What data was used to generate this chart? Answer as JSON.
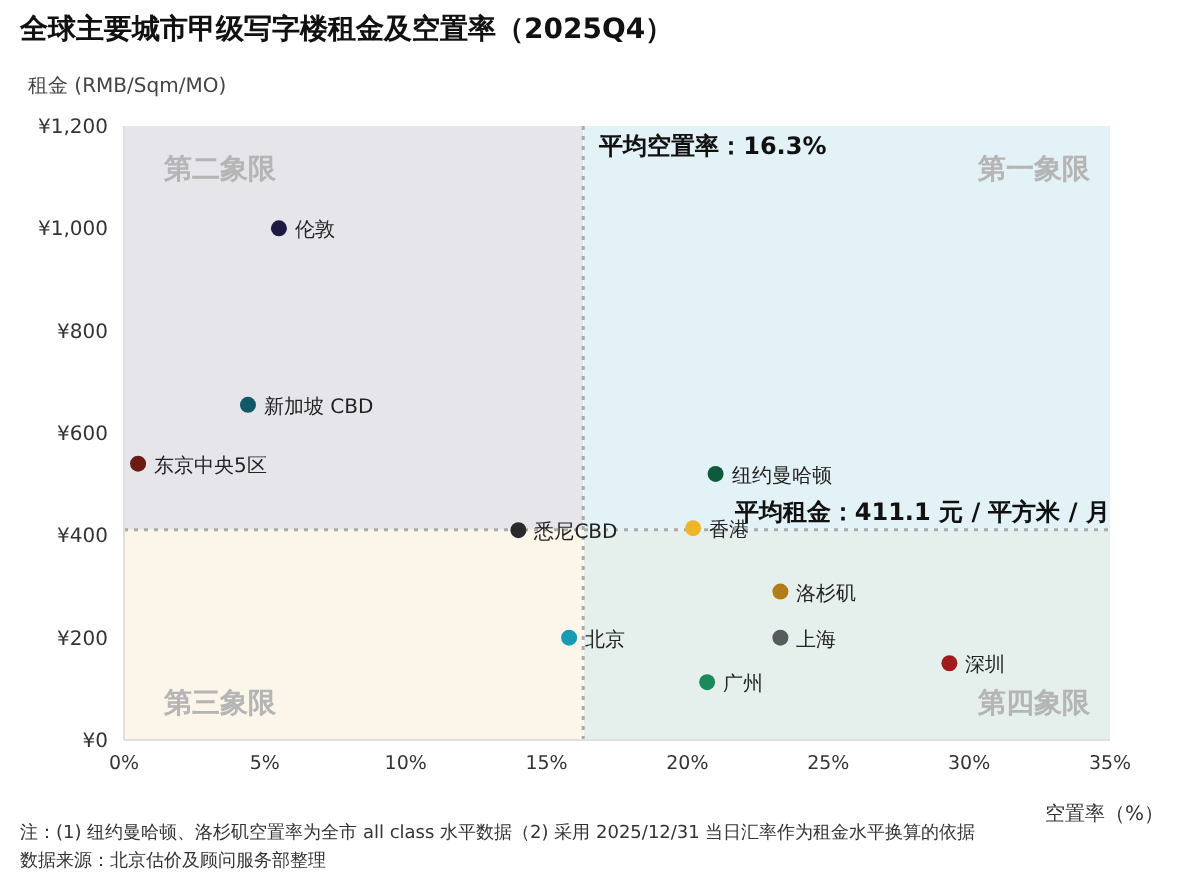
{
  "chart_data": {
    "type": "scatter",
    "title": "全球主要城市甲级写字楼租金及空置率（2025Q4）",
    "ylabel": "租金 (RMB/Sqm/MO)",
    "xlabel": "空置率（%）",
    "xlim": [
      0,
      35
    ],
    "xticks": [
      {
        "value": 0,
        "label": "0%"
      },
      {
        "value": 5,
        "label": "5%"
      },
      {
        "value": 10,
        "label": "10%"
      },
      {
        "value": 15,
        "label": "15%"
      },
      {
        "value": 20,
        "label": "20%"
      },
      {
        "value": 25,
        "label": "25%"
      },
      {
        "value": 30,
        "label": "30%"
      },
      {
        "value": 35,
        "label": "35%"
      }
    ],
    "ylim": [
      0,
      1200
    ],
    "yticks": [
      {
        "value": 0,
        "label": "¥0"
      },
      {
        "value": 200,
        "label": "¥200"
      },
      {
        "value": 400,
        "label": "¥400"
      },
      {
        "value": 600,
        "label": "¥600"
      },
      {
        "value": 800,
        "label": "¥800"
      },
      {
        "value": 1000,
        "label": "¥1,000"
      },
      {
        "value": 1200,
        "label": "¥1,200"
      }
    ],
    "grid": false,
    "legend": false,
    "marker": "circle",
    "series": [
      {
        "name": "伦敦",
        "color": "#1c1a40",
        "x": [
          5.5
        ],
        "values": [
          1000
        ]
      },
      {
        "name": "新加坡 CBD",
        "color": "#0f5a66",
        "x": [
          4.4
        ],
        "values": [
          655
        ]
      },
      {
        "name": "东京中央5区",
        "color": "#6b1a14",
        "x": [
          0.5
        ],
        "values": [
          540
        ]
      },
      {
        "name": "悉尼CBD",
        "color": "#2a2a2a",
        "x": [
          14.0
        ],
        "values": [
          410
        ]
      },
      {
        "name": "北京",
        "color": "#1a9bb5",
        "x": [
          15.8
        ],
        "values": [
          200
        ]
      },
      {
        "name": "香港",
        "color": "#f0b429",
        "x": [
          20.2
        ],
        "values": [
          414
        ]
      },
      {
        "name": "纽约曼哈顿",
        "color": "#0f5a3c",
        "x": [
          21.0
        ],
        "values": [
          520
        ]
      },
      {
        "name": "洛杉矶",
        "color": "#b07d1a",
        "x": [
          23.3
        ],
        "values": [
          290
        ]
      },
      {
        "name": "上海",
        "color": "#555b5e",
        "x": [
          23.3
        ],
        "values": [
          200
        ]
      },
      {
        "name": "深圳",
        "color": "#a01d1d",
        "x": [
          29.3
        ],
        "values": [
          150
        ]
      },
      {
        "name": "广州",
        "color": "#1a8a5a",
        "x": [
          20.7
        ],
        "values": [
          113
        ]
      }
    ],
    "ref_lines": [
      {
        "axis": "x",
        "value": 16.3,
        "label": "平均空置率：16.3%",
        "color": "#aaaaaa",
        "line_style": "dotted"
      },
      {
        "axis": "y",
        "value": 411.1,
        "label": "平均租金：411.1 元 / 平方米 / 月",
        "color": "#aaaaaa",
        "line_style": "dotted"
      }
    ],
    "annotations": [
      "第二象限",
      "第一象限",
      "第三象限",
      "第四象限",
      "注：(1) 纽约曼哈顿、洛杉矶空置率为全市 all class 水平数据（2) 采用 2025/12/31 当日汇率作为租金水平换算的依据",
      "数据来源：北京估价及顾问服务部整理"
    ]
  }
}
